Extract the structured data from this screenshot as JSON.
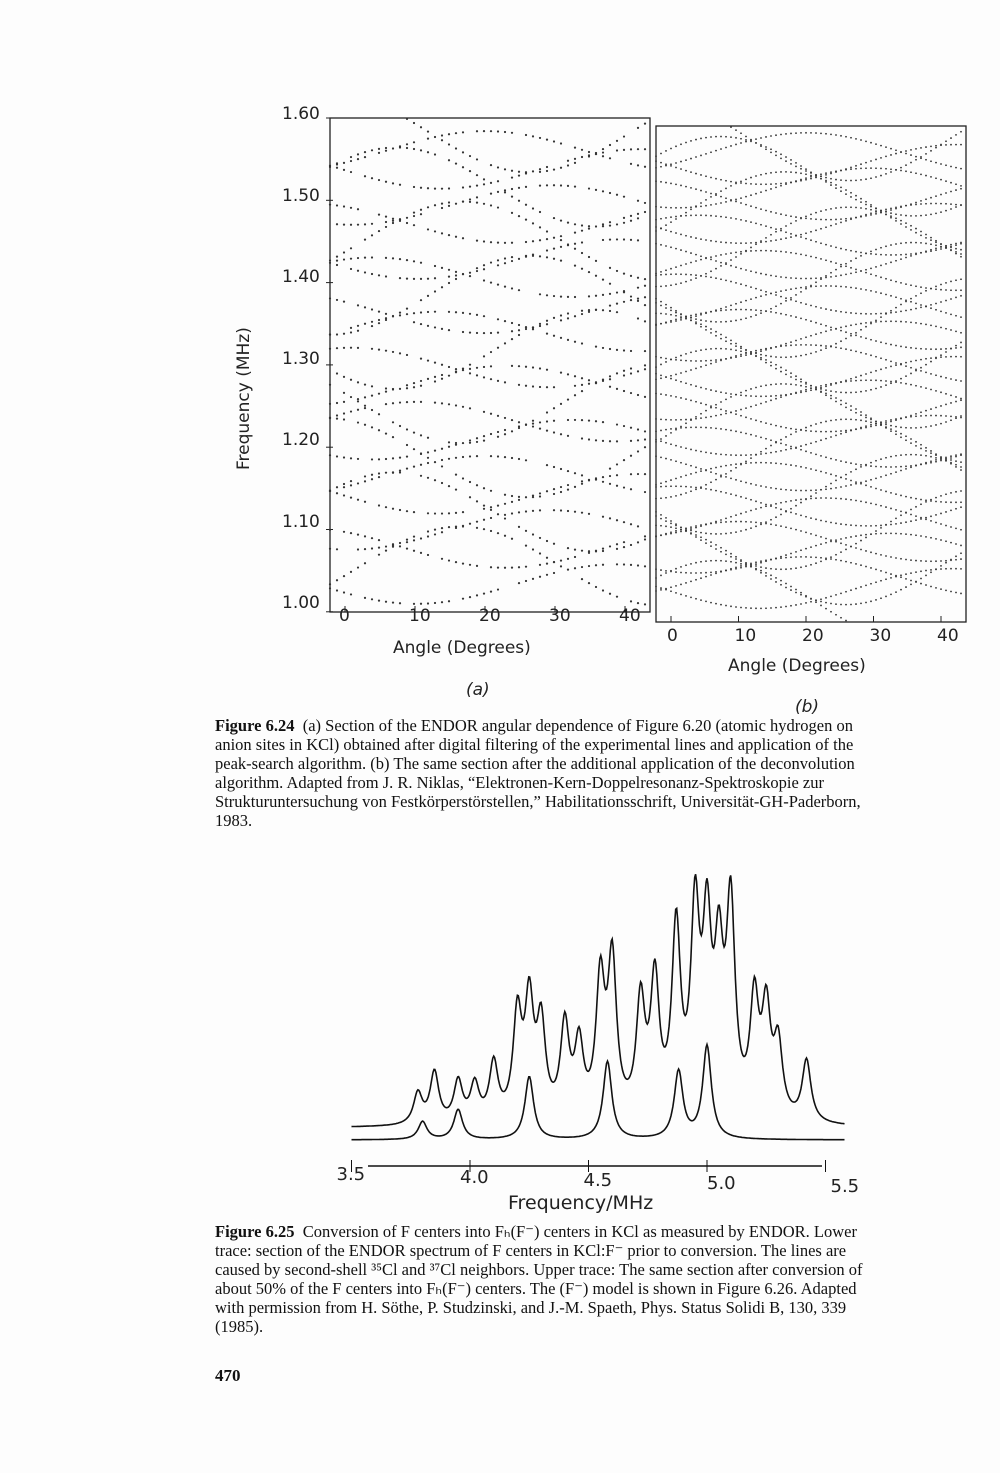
{
  "figure_624": {
    "ylabel": "Frequency (MHz)",
    "yticks": [
      "1.60",
      "1.50",
      "1.40",
      "1.30",
      "1.20",
      "1.10",
      "1.00"
    ],
    "panel_a": {
      "xticks": [
        "0",
        "10",
        "20",
        "30",
        "40"
      ],
      "xlabel": "Angle (Degrees)",
      "tag": "(a)"
    },
    "panel_b": {
      "xticks": [
        "0",
        "10",
        "20",
        "30",
        "40"
      ],
      "xlabel": "Angle (Degrees)",
      "tag": "(b)"
    },
    "caption_label": "Figure 6.24",
    "caption_lines": [
      "(a) Section of the ENDOR angular dependence of Figure 6.20 (atomic hydrogen on",
      "anion sites in KCl) obtained after digital filtering of the experimental lines and application of the",
      "peak-search algorithm. (b) The same section after the additional application of the deconvolution",
      "algorithm. Adapted from J. R. Niklas, “Elektronen-Kern-Doppelresonanz-Spektroskopie zur",
      "Strukturuntersuchung von Festkörperstörstellen,” Habilitationsschrift, Universität-GH-Paderborn,",
      "1983."
    ]
  },
  "chart_data": [
    {
      "type": "scatter",
      "title": "(a)",
      "xlabel": "Angle (Degrees)",
      "ylabel": "Frequency (MHz)",
      "xlim": [
        0,
        45
      ],
      "ylim": [
        1.0,
        1.6
      ],
      "grid": false
    },
    {
      "type": "scatter",
      "title": "(b)",
      "xlabel": "Angle (Degrees)",
      "ylabel": "Frequency (MHz)",
      "xlim": [
        0,
        45
      ],
      "ylim": [
        1.0,
        1.6
      ],
      "grid": false
    },
    {
      "type": "line",
      "xlabel": "Frequency/MHz",
      "xticks": [
        "3.5",
        "4.0",
        "4.5",
        "5.0",
        "5.5"
      ],
      "xlim": [
        3.5,
        5.5
      ],
      "series": [
        {
          "peaks_mhz": [
            3.78,
            3.85,
            3.95,
            4.02,
            4.1,
            4.2,
            4.25,
            4.3,
            4.4,
            4.46,
            4.55,
            4.6,
            4.72,
            4.78,
            4.87,
            4.95,
            5.0,
            5.05,
            5.1,
            5.2,
            5.25,
            5.3,
            5.42
          ],
          "heights": [
            0.15,
            0.25,
            0.2,
            0.18,
            0.28,
            0.5,
            0.55,
            0.45,
            0.45,
            0.35,
            0.65,
            0.75,
            0.55,
            0.65,
            0.9,
            0.95,
            0.85,
            0.7,
            1.0,
            0.55,
            0.5,
            0.35,
            0.3
          ]
        },
        {
          "peaks_mhz": [
            3.8,
            3.95,
            4.25,
            4.58,
            4.88,
            5.0
          ],
          "heights": [
            0.12,
            0.2,
            0.42,
            0.52,
            0.45,
            0.62
          ]
        }
      ]
    }
  ],
  "figure_625": {
    "xticks": [
      "3.5",
      "4.0",
      "4.5",
      "5.0",
      "5.5"
    ],
    "xlabel": "Frequency/MHz",
    "caption_label": "Figure 6.25",
    "caption_lines": [
      "Conversion of F centers into Fₕ(F⁻) centers in KCl as measured by ENDOR. Lower",
      "trace: section of the ENDOR spectrum of F centers in KCl:F⁻ prior to conversion. The lines are",
      "caused by second-shell ³⁵Cl and ³⁷Cl neighbors. Upper trace: The same section after conversion of",
      "about 50% of the F centers into Fₕ(F⁻) centers. The (F⁻) model is shown in Figure 6.26. Adapted",
      "with permission from H. Söthe, P. Studzinski, and J.-M. Spaeth, Phys. Status Solidi B, 130, 339",
      "(1985)."
    ]
  },
  "page_number": "470"
}
